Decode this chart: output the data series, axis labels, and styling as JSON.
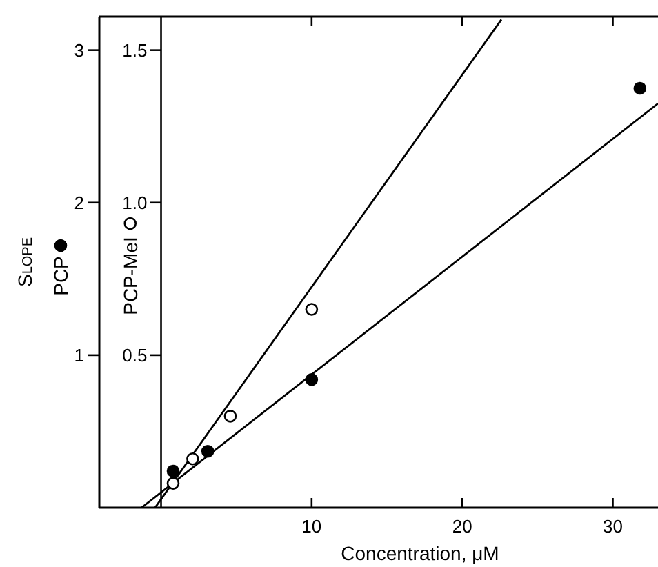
{
  "chart_data": {
    "type": "scatter",
    "xlabel": "Concentration, μM",
    "ylabel": "Slope",
    "xlim": [
      -4.1,
      33
    ],
    "xticks": [
      10,
      20,
      30
    ],
    "ylim": [
      0,
      3.22
    ],
    "yticks": [
      1,
      2,
      3
    ],
    "y2lim": [
      0,
      1.61
    ],
    "y2ticks": [
      {
        "value": 0.5,
        "label": "0.5"
      },
      {
        "value": 1,
        "label": "1.0"
      },
      {
        "value": 1.5,
        "label": "1.5"
      }
    ],
    "legend": "left",
    "grid": false,
    "series": [
      {
        "name": "PCP",
        "color": "#000000",
        "marker": "circle",
        "x": [
          0.8,
          3.1,
          10,
          31.8
        ],
        "values": [
          0.24,
          0.37,
          0.84,
          2.75
        ]
      },
      {
        "name": "PCP-MeI",
        "color": "#ffffff",
        "marker": "circle",
        "axis": "y2",
        "x": [
          0.8,
          2.1,
          4.6,
          10
        ],
        "values": [
          0.08,
          0.16,
          0.3,
          0.65
        ]
      },
      {
        "type": "line",
        "color": "#000000",
        "x": [
          -1.3,
          33
        ],
        "values": [
          0,
          2.65
        ]
      },
      {
        "type": "line",
        "color": "#000000",
        "axis": "y2",
        "x": [
          -0.4,
          22.6
        ],
        "values": [
          0,
          1.6
        ]
      }
    ]
  }
}
